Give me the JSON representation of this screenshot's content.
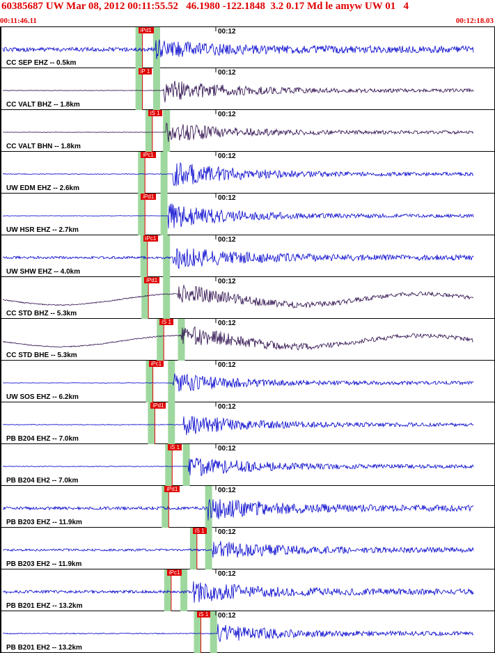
{
  "header": {
    "title": "60385687 UW Mar 08, 2012 00:11:55.52   46.1980 -122.1848  3.2 0.17 Md le amyw UW 01   4",
    "time_start": "00:11:46.11",
    "time_end": "00:12:18.03"
  },
  "colors": {
    "header_text": "#e00000",
    "trace_blue": "#0000cc",
    "trace_dark": "#2a0a4a",
    "pick_red": "#e00000",
    "window_green": "#9fd89f"
  },
  "tick_label": "00:12",
  "traces": [
    {
      "label": "CC SEP EHZ -- 0.5km",
      "pick": "iPd1",
      "color": "blue",
      "pickX": 0.285,
      "greenX": 0.315,
      "amp": 0.35,
      "noise": 0.5,
      "onset": 0.315
    },
    {
      "label": "CC VALT BHZ -- 1.8km",
      "pick": "iP 1",
      "color": "dark",
      "pickX": 0.285,
      "greenX": 0.315,
      "amp": 0.55,
      "noise": 0.06,
      "onset": 0.33
    },
    {
      "label": "CC VALT BHN -- 1.8km",
      "pick": "iS 1",
      "color": "dark",
      "pickX": 0.305,
      "greenX": 0.335,
      "amp": 0.5,
      "noise": 0.05,
      "onset": 0.335
    },
    {
      "label": "UW EDM EHZ -- 2.6km",
      "pick": "iPc1",
      "color": "blue",
      "pickX": 0.29,
      "greenX": 0.33,
      "amp": 0.6,
      "noise": 0.08,
      "onset": 0.35
    },
    {
      "label": "UW HSR EHZ -- 2.7km",
      "pick": "iPd1",
      "color": "blue",
      "pickX": 0.29,
      "greenX": 0.33,
      "amp": 0.6,
      "noise": 0.05,
      "onset": 0.34
    },
    {
      "label": "UW SHW EHZ -- 4.0km",
      "pick": "iPc1",
      "color": "blue",
      "pickX": 0.295,
      "greenX": 0.335,
      "amp": 0.5,
      "noise": 0.3,
      "onset": 0.35
    },
    {
      "label": "CC STD BHZ -- 5.3km",
      "pick": "iPd1",
      "color": "dark",
      "pickX": 0.297,
      "greenX": 0.335,
      "amp": 0.45,
      "noise": 0.12,
      "onset": 0.36
    },
    {
      "label": "CC STD BHE -- 5.3km",
      "pick": "iS 1",
      "color": "dark",
      "pickX": 0.328,
      "greenX": 0.365,
      "amp": 0.5,
      "noise": 0.12,
      "onset": 0.365
    },
    {
      "label": "UW SOS EHZ -- 6.2km",
      "pick": "iPc1",
      "color": "blue",
      "pickX": 0.306,
      "greenX": 0.345,
      "amp": 0.45,
      "noise": 0.05,
      "onset": 0.35
    },
    {
      "label": "PB B204 EHZ -- 7.0km",
      "pick": "iPd1",
      "color": "blue",
      "pickX": 0.31,
      "greenX": 0.345,
      "amp": 0.5,
      "noise": 0.08,
      "onset": 0.37
    },
    {
      "label": "PB B204 EH2 -- 7.0km",
      "pick": "iS 1",
      "color": "blue",
      "pickX": 0.345,
      "greenX": 0.375,
      "amp": 0.5,
      "noise": 0.08,
      "onset": 0.38
    },
    {
      "label": "PB B203 EHZ -- 11.9km",
      "pick": "iPd1",
      "color": "blue",
      "pickX": 0.338,
      "greenX": 0.42,
      "amp": 0.5,
      "noise": 0.35,
      "onset": 0.42
    },
    {
      "label": "PB B203 EH2 -- 11.9km",
      "pick": "iS 1",
      "color": "blue",
      "pickX": 0.395,
      "greenX": 0.42,
      "amp": 0.4,
      "noise": 0.25,
      "onset": 0.43
    },
    {
      "label": "PB B201 EHZ -- 13.2km",
      "pick": "iPc1",
      "color": "blue",
      "pickX": 0.343,
      "greenX": 0.37,
      "amp": 0.45,
      "noise": 0.35,
      "onset": 0.39
    },
    {
      "label": "PB B201 EH2 -- 13.2km",
      "pick": "iS 1",
      "color": "blue",
      "pickX": 0.403,
      "greenX": 0.43,
      "amp": 0.4,
      "noise": 0.12,
      "onset": 0.44
    }
  ]
}
